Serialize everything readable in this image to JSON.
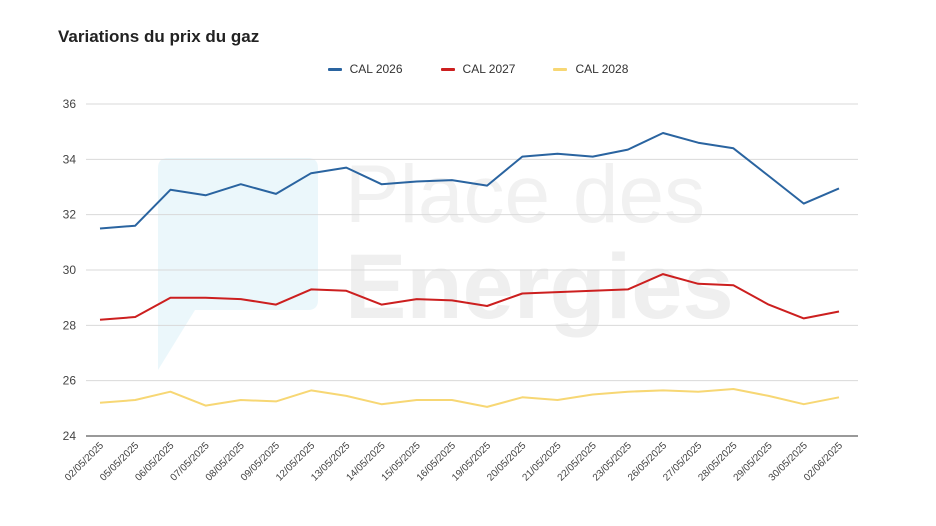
{
  "chart_data": {
    "type": "line",
    "title": "Variations du prix du gaz",
    "categories": [
      "02/05/2025",
      "05/05/2025",
      "06/05/2025",
      "07/05/2025",
      "08/05/2025",
      "09/05/2025",
      "12/05/2025",
      "13/05/2025",
      "14/05/2025",
      "15/05/2025",
      "16/05/2025",
      "19/05/2025",
      "20/05/2025",
      "21/05/2025",
      "22/05/2025",
      "23/05/2025",
      "26/05/2025",
      "27/05/2025",
      "28/05/2025",
      "29/05/2025",
      "30/05/2025",
      "02/06/2025"
    ],
    "series": [
      {
        "name": "CAL 2026",
        "color": "#2a64a0",
        "values": [
          31.5,
          31.6,
          32.9,
          32.7,
          33.1,
          32.75,
          33.5,
          33.7,
          33.1,
          33.2,
          33.25,
          33.05,
          34.1,
          34.2,
          34.1,
          34.35,
          34.95,
          34.6,
          34.4,
          33.4,
          32.4,
          32.95
        ]
      },
      {
        "name": "CAL 2027",
        "color": "#cc1f1f",
        "values": [
          28.2,
          28.3,
          29.0,
          29.0,
          28.95,
          28.75,
          29.3,
          29.25,
          28.75,
          28.95,
          28.9,
          28.7,
          29.15,
          29.2,
          29.25,
          29.3,
          29.85,
          29.5,
          29.45,
          28.75,
          28.25,
          28.5
        ]
      },
      {
        "name": "CAL 2028",
        "color": "#f7d774",
        "values": [
          25.2,
          25.3,
          25.6,
          25.1,
          25.3,
          25.25,
          25.65,
          25.45,
          25.15,
          25.3,
          25.3,
          25.05,
          25.4,
          25.3,
          25.5,
          25.6,
          25.65,
          25.6,
          25.7,
          25.45,
          25.15,
          25.4
        ]
      }
    ],
    "yticks": [
      "36",
      "34",
      "32",
      "30",
      "28",
      "26",
      "24"
    ],
    "ylim": [
      24,
      36
    ],
    "grid": true,
    "legend_position": "top-center"
  },
  "watermark": {
    "line1": "Place des",
    "line2": "Energies"
  }
}
